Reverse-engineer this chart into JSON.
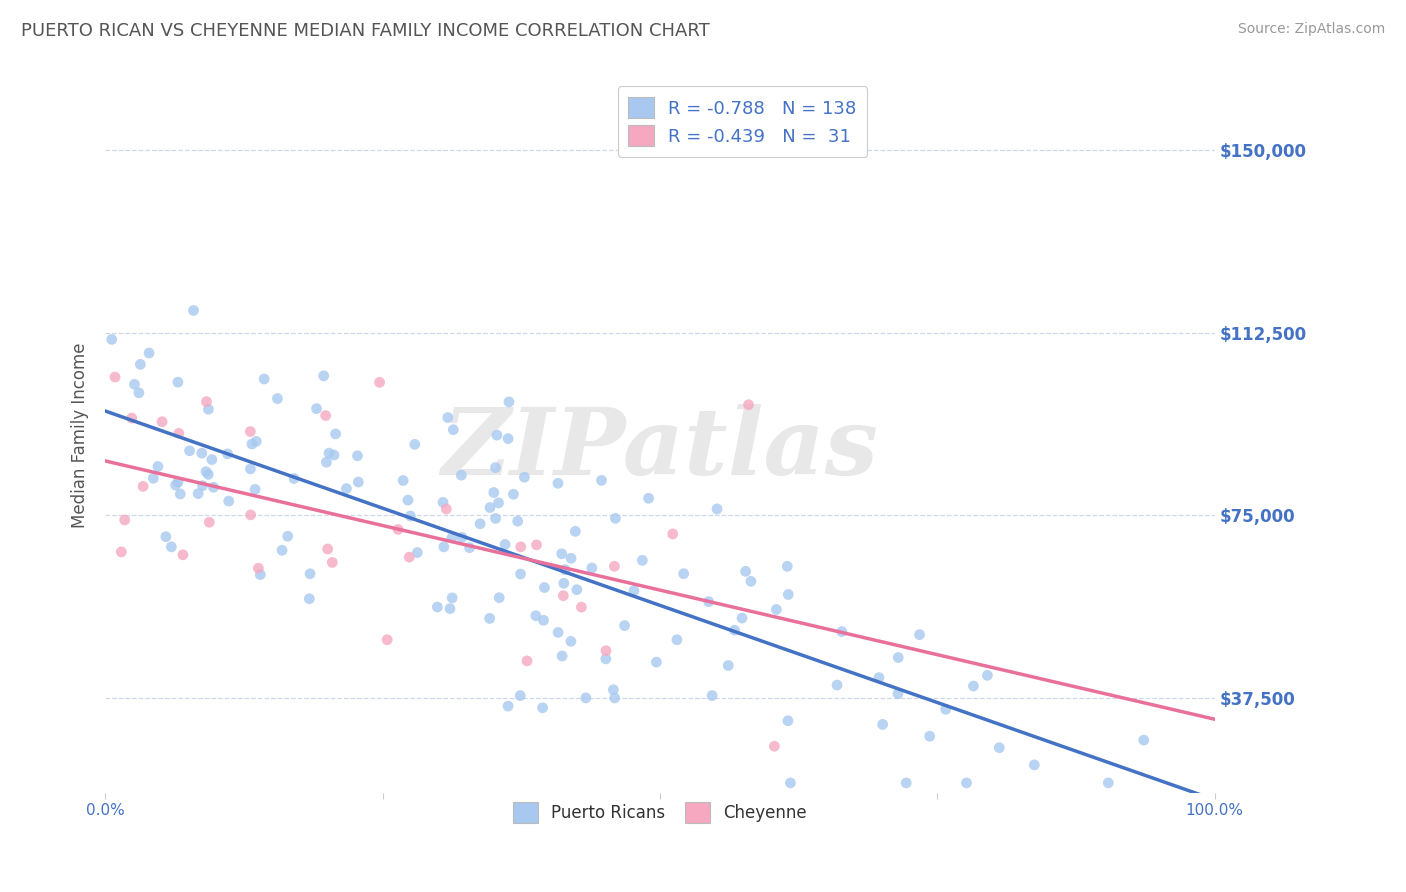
{
  "title": "PUERTO RICAN VS CHEYENNE MEDIAN FAMILY INCOME CORRELATION CHART",
  "source_text": "Source: ZipAtlas.com",
  "ylabel": "Median Family Income",
  "xmin": 0.0,
  "xmax": 1.0,
  "ymin": 18000,
  "ymax": 165000,
  "yticks": [
    37500,
    75000,
    112500,
    150000
  ],
  "ytick_labels": [
    "$37,500",
    "$75,000",
    "$112,500",
    "$150,000"
  ],
  "blue_color": "#a8c8f0",
  "pink_color": "#f5a8c0",
  "blue_line_color": "#4472c4",
  "pink_line_color": "#e8709a",
  "legend_r1": "-0.788",
  "legend_n1": "138",
  "legend_r2": "-0.439",
  "legend_n2": " 31",
  "blue_r": -0.788,
  "blue_n": 138,
  "pink_r": -0.439,
  "pink_n": 31,
  "watermark": "ZIPatlas",
  "title_color": "#555555",
  "tick_label_color": "#4472c4",
  "background_color": "#ffffff",
  "grid_color": "#c8d4e8",
  "seed": 12
}
